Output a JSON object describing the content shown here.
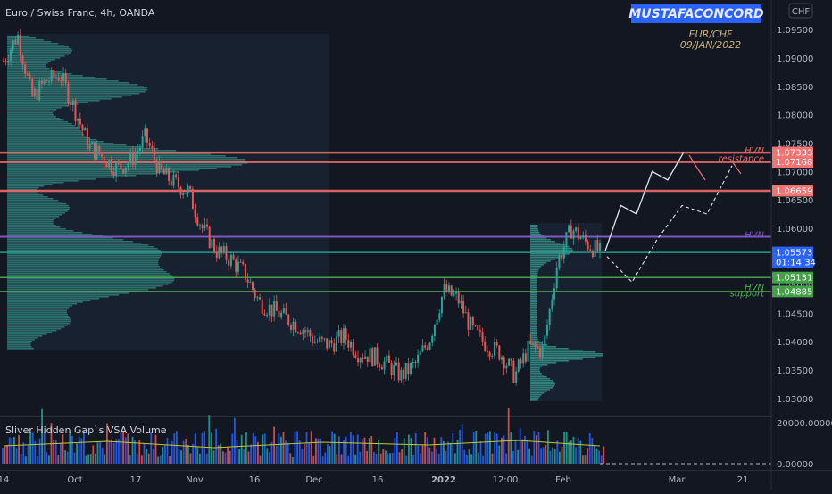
{
  "header": {
    "symbol_title": "Euro / Swiss Franc, 4h, OANDA",
    "brand": "MUSTAFACONCORD",
    "pair": "EUR/CHF",
    "date": "09/JAN/2022",
    "currency": "CHF"
  },
  "colors": {
    "background": "#131722",
    "up_candle": "#26a69a",
    "down_candle": "#ef5350",
    "resistance_line": "#ef6b6b",
    "hvn_line": "#7e57c2",
    "support_line": "#4caf50",
    "profile_fill": "#3fb3a3",
    "brand_bg": "#2962ff"
  },
  "chart_data": {
    "type": "candlestick",
    "y_axis_ticks": [
      "1.09500",
      "1.09000",
      "1.08500",
      "1.08000",
      "1.07500",
      "1.07000",
      "1.06500",
      "1.06000",
      "1.05500",
      "1.05000",
      "1.04500",
      "1.04000",
      "1.03500",
      "1.03000"
    ],
    "y_range": [
      1.0295,
      1.0955
    ],
    "x_axis_ticks": [
      "14",
      "Oct",
      "17",
      "Nov",
      "16",
      "Dec",
      "16",
      "2022",
      "12:00",
      "Feb",
      "Mar",
      "21"
    ],
    "price_path": [
      1.0895,
      1.094,
      1.083,
      1.086,
      1.087,
      1.081,
      1.0745,
      1.0725,
      1.0705,
      1.072,
      1.076,
      1.07,
      1.068,
      1.0665,
      1.06,
      1.056,
      1.0545,
      1.052,
      1.047,
      1.0455,
      1.044,
      1.0425,
      1.04,
      1.0395,
      1.041,
      1.038,
      1.0375,
      1.036,
      1.034,
      1.036,
      1.0405,
      1.049,
      1.0475,
      1.042,
      1.0395,
      1.038,
      1.034,
      1.039,
      1.0385,
      1.054,
      1.06,
      1.0575,
      1.0557
    ],
    "price_labels": [
      {
        "value": 1.07333,
        "text": "1.07333",
        "kind": "resistance"
      },
      {
        "value": 1.07168,
        "text": "1.07168",
        "kind": "resistance"
      },
      {
        "value": 1.06659,
        "text": "1.06659",
        "kind": "resistance"
      },
      {
        "value": 1.05573,
        "text": "1.05573",
        "sub": "01:14:34",
        "kind": "current"
      },
      {
        "value": 1.05131,
        "text": "1.05131",
        "kind": "support"
      },
      {
        "value": 1.04885,
        "text": "1.04885",
        "kind": "support"
      }
    ],
    "annotations": [
      {
        "text": "HVN",
        "value": 1.0738,
        "color": "#ef6b6b"
      },
      {
        "text": "resistance",
        "value": 1.0724,
        "color": "#ef6b6b"
      },
      {
        "text": "HVN",
        "value": 1.059,
        "color": "#7e57c2"
      },
      {
        "text": "HVN",
        "value": 1.0497,
        "color": "#4caf50"
      },
      {
        "text": "support",
        "value": 1.0486,
        "color": "#4caf50"
      }
    ],
    "projection_up": [
      1.056,
      1.064,
      1.0625,
      1.07,
      1.0685,
      1.0733
    ],
    "projection_alt": [
      1.055,
      1.0505,
      1.058,
      1.064,
      1.0625,
      1.071
    ],
    "volume_panel": {
      "title": "Sliver Hidden Gap`s VSA Volume",
      "ticks": [
        "20000.00000",
        "0.00000"
      ]
    }
  }
}
